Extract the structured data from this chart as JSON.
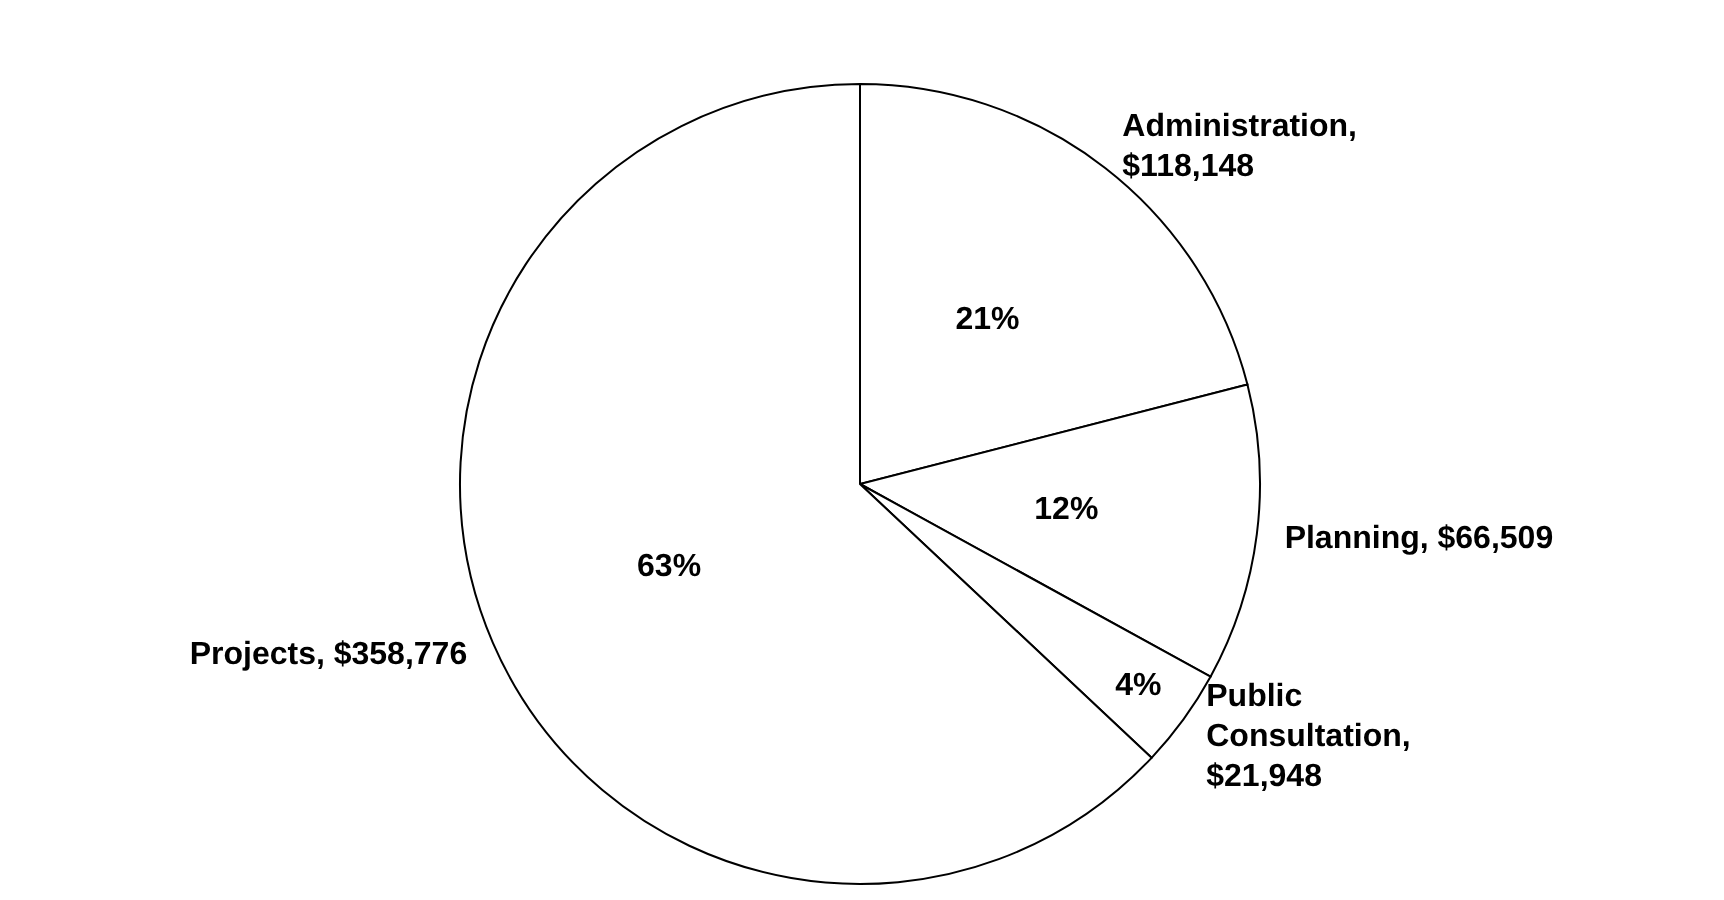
{
  "chart_data": {
    "type": "pie",
    "categories": [
      "Administration,\n$118,148",
      "Planning, $66,509",
      "Public\nConsultation,\n$21,948",
      "Projects, $358,776"
    ],
    "values": [
      21,
      12,
      4,
      63
    ],
    "colors": [
      "#ffffff",
      "#ffffff",
      "#ffffff",
      "#ffffff"
    ],
    "value_labels": [
      "21%",
      "12%",
      "4%",
      "63%"
    ]
  }
}
